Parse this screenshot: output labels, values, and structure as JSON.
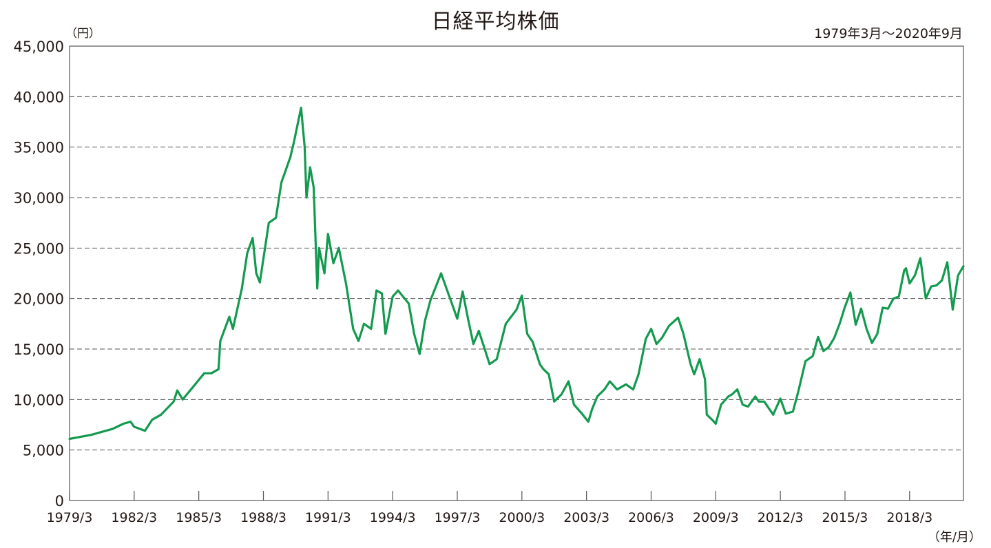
{
  "chart_data": {
    "type": "line",
    "title": "日経平均株価",
    "period_label": "1979年3月～2020年9月",
    "y_unit": "（円）",
    "x_unit": "（年/月）",
    "ylim": [
      0,
      45000
    ],
    "y_ticks": [
      0,
      5000,
      10000,
      15000,
      20000,
      25000,
      30000,
      35000,
      40000,
      45000
    ],
    "y_tick_labels": [
      "0",
      "5,000",
      "10,000",
      "15,000",
      "20,000",
      "25,000",
      "30,000",
      "35,000",
      "40,000",
      "45,000"
    ],
    "x_range": [
      "1979/3",
      "2020/9"
    ],
    "x_tick_labels": [
      "1979/3",
      "1982/3",
      "1985/3",
      "1988/3",
      "1991/3",
      "1994/3",
      "1997/3",
      "2000/3",
      "2003/3",
      "2006/3",
      "2009/3",
      "2012/3",
      "2015/3",
      "2018/3"
    ],
    "grid": "horizontal dashed",
    "line_color": "#139a4f",
    "series": [
      {
        "name": "",
        "points": [
          [
            "1979/3",
            6100
          ],
          [
            "1979/9",
            6300
          ],
          [
            "1980/3",
            6500
          ],
          [
            "1980/9",
            6800
          ],
          [
            "1981/3",
            7100
          ],
          [
            "1981/9",
            7600
          ],
          [
            "1982/1",
            7800
          ],
          [
            "1982/3",
            7300
          ],
          [
            "1982/9",
            6900
          ],
          [
            "1983/1",
            8000
          ],
          [
            "1983/6",
            8500
          ],
          [
            "1984/1",
            9800
          ],
          [
            "1984/3",
            10900
          ],
          [
            "1984/6",
            10000
          ],
          [
            "1985/1",
            11500
          ],
          [
            "1985/6",
            12600
          ],
          [
            "1985/10",
            12600
          ],
          [
            "1986/2",
            13000
          ],
          [
            "1986/3",
            15800
          ],
          [
            "1986/8",
            18200
          ],
          [
            "1986/10",
            17000
          ],
          [
            "1987/3",
            21000
          ],
          [
            "1987/6",
            24500
          ],
          [
            "1987/9",
            26000
          ],
          [
            "1987/11",
            22500
          ],
          [
            "1988/1",
            21600
          ],
          [
            "1988/6",
            27500
          ],
          [
            "1988/10",
            28000
          ],
          [
            "1989/1",
            31500
          ],
          [
            "1989/6",
            34000
          ],
          [
            "1989/8",
            35500
          ],
          [
            "1989/12",
            38900
          ],
          [
            "1990/2",
            35000
          ],
          [
            "1990/3",
            30000
          ],
          [
            "1990/5",
            33000
          ],
          [
            "1990/7",
            31000
          ],
          [
            "1990/9",
            21000
          ],
          [
            "1990/10",
            25000
          ],
          [
            "1991/1",
            22500
          ],
          [
            "1991/3",
            26400
          ],
          [
            "1991/6",
            23500
          ],
          [
            "1991/9",
            25000
          ],
          [
            "1992/1",
            21500
          ],
          [
            "1992/5",
            17000
          ],
          [
            "1992/8",
            15800
          ],
          [
            "1992/11",
            17500
          ],
          [
            "1993/3",
            17000
          ],
          [
            "1993/6",
            20800
          ],
          [
            "1993/9",
            20500
          ],
          [
            "1993/11",
            16500
          ],
          [
            "1994/3",
            20200
          ],
          [
            "1994/6",
            20800
          ],
          [
            "1994/12",
            19500
          ],
          [
            "1995/3",
            16500
          ],
          [
            "1995/6",
            14500
          ],
          [
            "1995/9",
            17800
          ],
          [
            "1995/12",
            19800
          ],
          [
            "1996/6",
            22500
          ],
          [
            "1996/9",
            21000
          ],
          [
            "1996/12",
            19500
          ],
          [
            "1997/3",
            18000
          ],
          [
            "1997/6",
            20700
          ],
          [
            "1997/9",
            18000
          ],
          [
            "1997/12",
            15500
          ],
          [
            "1998/3",
            16800
          ],
          [
            "1998/9",
            13500
          ],
          [
            "1999/1",
            14000
          ],
          [
            "1999/6",
            17500
          ],
          [
            "1999/12",
            18900
          ],
          [
            "2000/3",
            20300
          ],
          [
            "2000/6",
            16500
          ],
          [
            "2000/9",
            15700
          ],
          [
            "2001/1",
            13500
          ],
          [
            "2001/3",
            13000
          ],
          [
            "2001/6",
            12500
          ],
          [
            "2001/9",
            9800
          ],
          [
            "2002/1",
            10500
          ],
          [
            "2002/5",
            11800
          ],
          [
            "2002/8",
            9500
          ],
          [
            "2002/12",
            8700
          ],
          [
            "2003/4",
            7800
          ],
          [
            "2003/6",
            9000
          ],
          [
            "2003/9",
            10300
          ],
          [
            "2004/1",
            11000
          ],
          [
            "2004/4",
            11800
          ],
          [
            "2004/8",
            11000
          ],
          [
            "2005/1",
            11500
          ],
          [
            "2005/5",
            11000
          ],
          [
            "2005/8",
            12500
          ],
          [
            "2005/12",
            16000
          ],
          [
            "2006/3",
            17000
          ],
          [
            "2006/6",
            15500
          ],
          [
            "2006/9",
            16100
          ],
          [
            "2007/1",
            17300
          ],
          [
            "2007/6",
            18100
          ],
          [
            "2007/9",
            16500
          ],
          [
            "2008/1",
            13500
          ],
          [
            "2008/3",
            12500
          ],
          [
            "2008/6",
            14000
          ],
          [
            "2008/9",
            12000
          ],
          [
            "2008/10",
            8500
          ],
          [
            "2009/1",
            8000
          ],
          [
            "2009/3",
            7600
          ],
          [
            "2009/6",
            9500
          ],
          [
            "2009/10",
            10300
          ],
          [
            "2009/12",
            10500
          ],
          [
            "2010/3",
            11000
          ],
          [
            "2010/6",
            9500
          ],
          [
            "2010/9",
            9300
          ],
          [
            "2011/1",
            10300
          ],
          [
            "2011/3",
            9800
          ],
          [
            "2011/6",
            9800
          ],
          [
            "2011/11",
            8500
          ],
          [
            "2012/3",
            10100
          ],
          [
            "2012/6",
            8600
          ],
          [
            "2012/10",
            8800
          ],
          [
            "2013/1",
            10800
          ],
          [
            "2013/5",
            13800
          ],
          [
            "2013/9",
            14300
          ],
          [
            "2013/12",
            16200
          ],
          [
            "2014/3",
            14800
          ],
          [
            "2014/6",
            15200
          ],
          [
            "2014/9",
            16100
          ],
          [
            "2014/12",
            17500
          ],
          [
            "2015/3",
            19200
          ],
          [
            "2015/6",
            20600
          ],
          [
            "2015/9",
            17400
          ],
          [
            "2015/12",
            19000
          ],
          [
            "2016/3",
            17000
          ],
          [
            "2016/6",
            15600
          ],
          [
            "2016/9",
            16500
          ],
          [
            "2016/12",
            19100
          ],
          [
            "2017/3",
            19000
          ],
          [
            "2017/6",
            20000
          ],
          [
            "2017/9",
            20200
          ],
          [
            "2017/12",
            22800
          ],
          [
            "2018/1",
            23000
          ],
          [
            "2018/3",
            21500
          ],
          [
            "2018/6",
            22300
          ],
          [
            "2018/9",
            24000
          ],
          [
            "2018/12",
            20000
          ],
          [
            "2019/3",
            21200
          ],
          [
            "2019/6",
            21300
          ],
          [
            "2019/9",
            21800
          ],
          [
            "2019/12",
            23600
          ],
          [
            "2020/3",
            18900
          ],
          [
            "2020/6",
            22300
          ],
          [
            "2020/9",
            23200
          ]
        ]
      }
    ]
  }
}
